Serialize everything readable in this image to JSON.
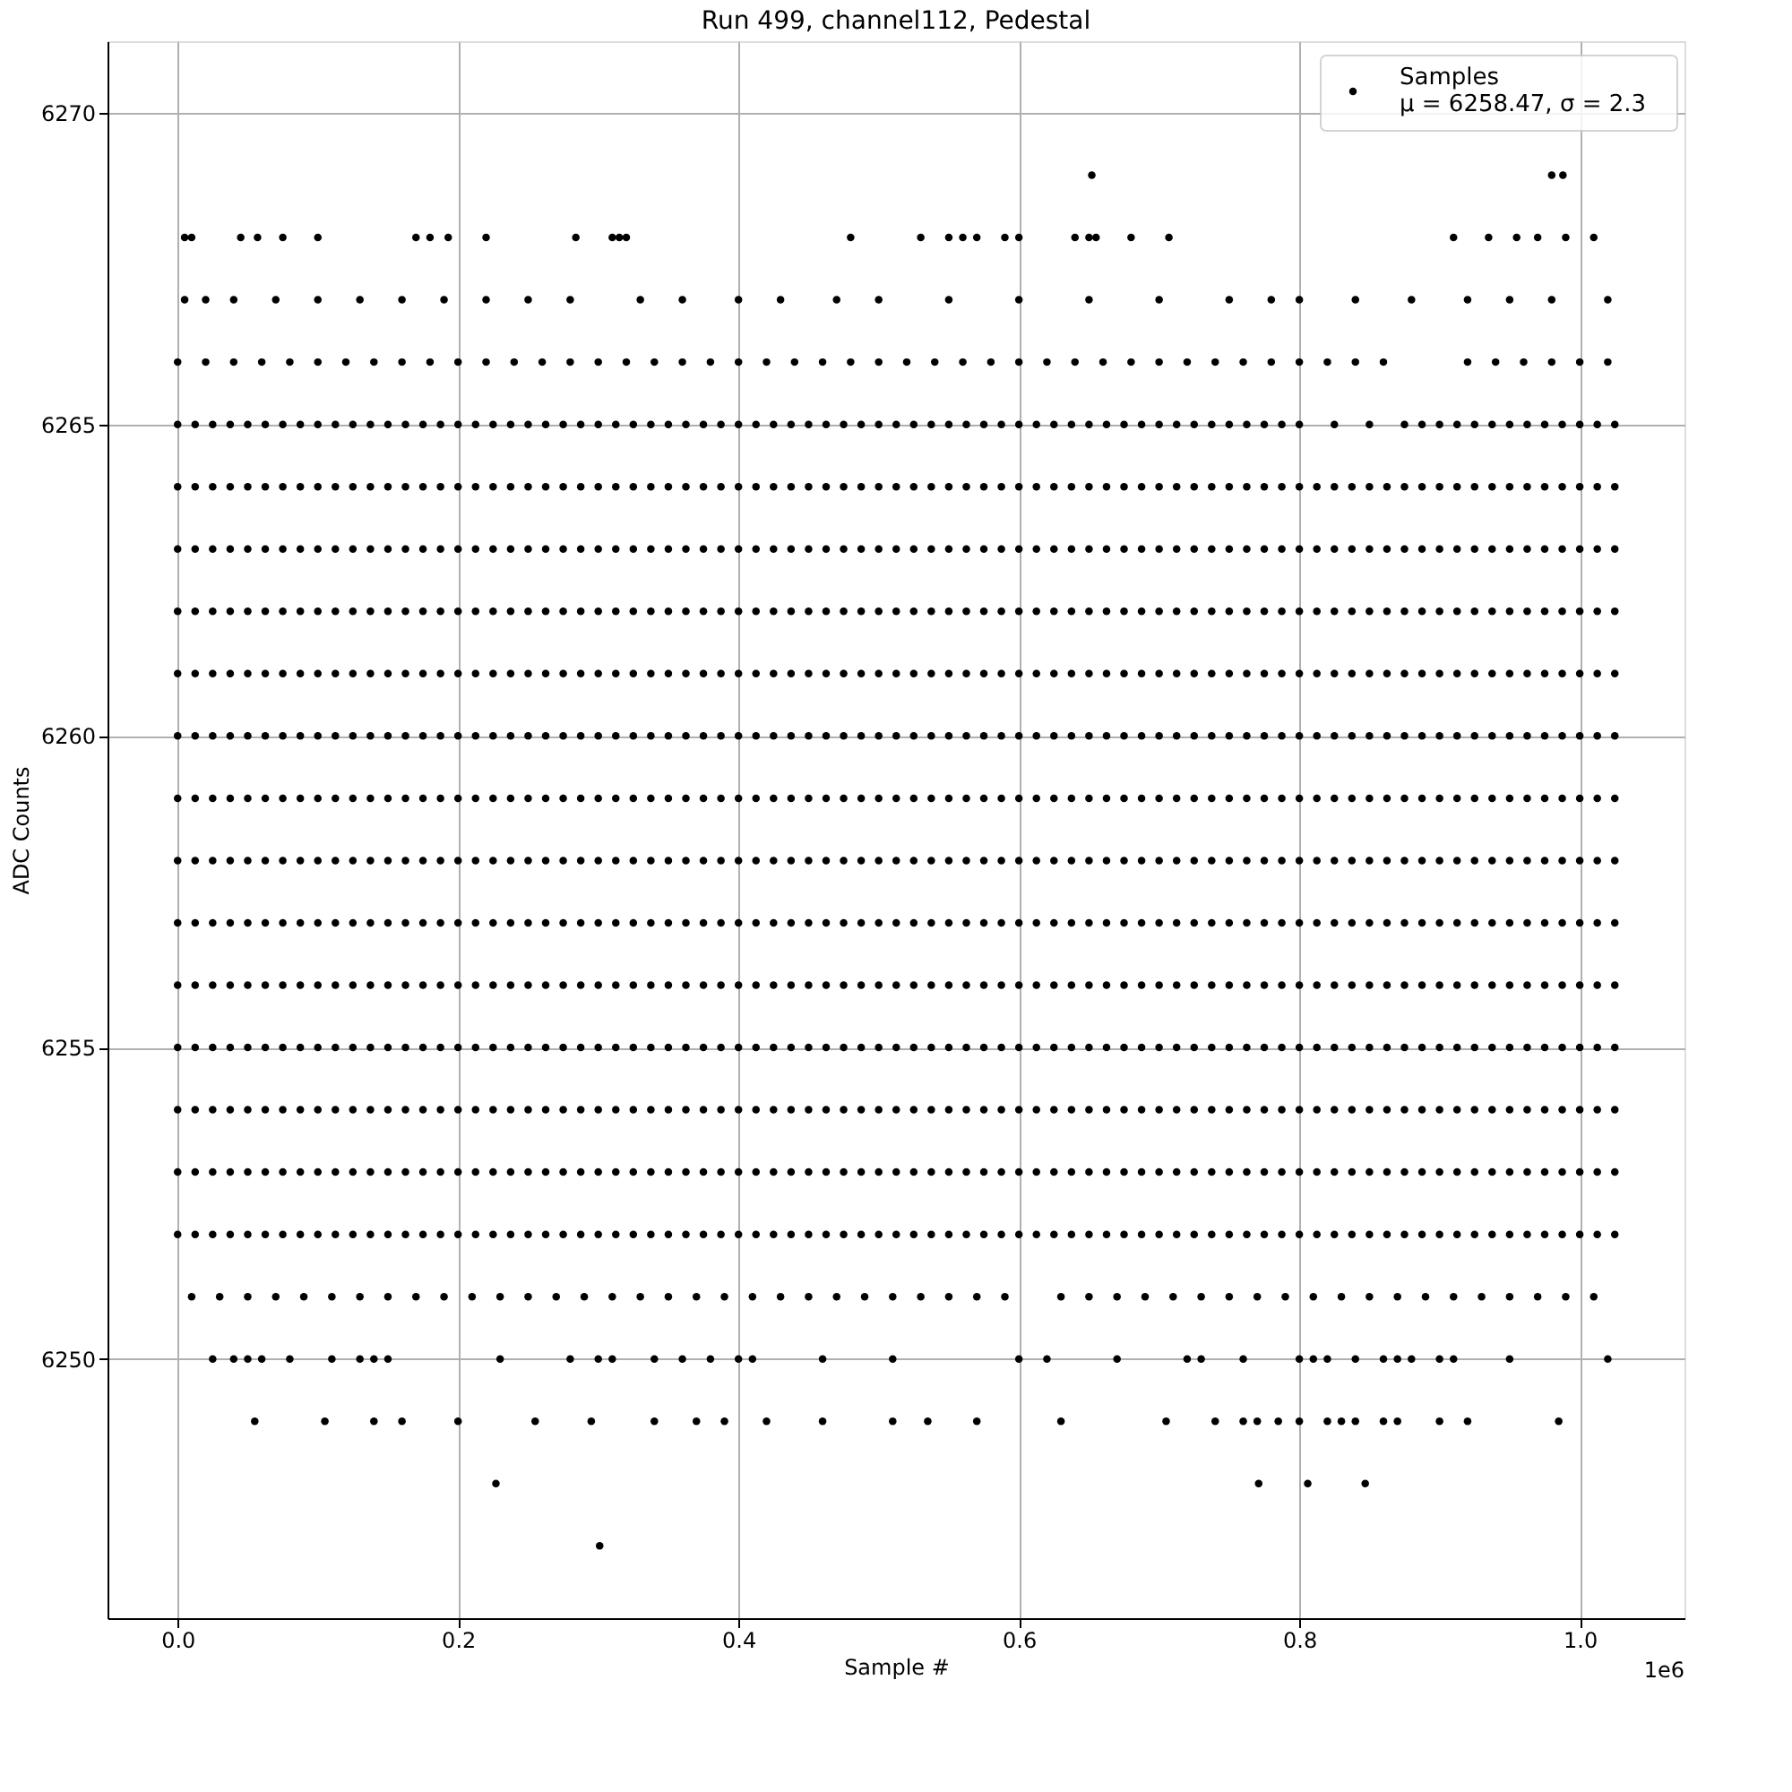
{
  "chart_data": {
    "type": "scatter",
    "title": "Run 499, channel112, Pedestal",
    "xlabel": "Sample #",
    "ylabel": "ADC Counts",
    "xlim": [
      -0.05,
      1.0747
    ],
    "ylim": [
      6245.84,
      6271.15
    ],
    "xticks": [
      {
        "value": 0,
        "label": "0.0"
      },
      0.2,
      0.4,
      0.6,
      0.8,
      {
        "value": 1,
        "label": "1.0"
      }
    ],
    "yticks": [
      6250,
      6255,
      6260,
      6265,
      6270
    ],
    "grid": true,
    "legend": "top right",
    "marker": "circle",
    "annotations": [
      "1e6"
    ],
    "x": [
      0,
      0.0125,
      0.025,
      0.0375,
      0.05,
      0.0625,
      0.075,
      0.0875,
      0.1,
      0.1125,
      0.125,
      0.1375,
      0.15,
      0.1625,
      0.175,
      0.1875,
      0.2,
      0.2125,
      0.225,
      0.2375,
      0.25,
      0.2625,
      0.275,
      0.2875,
      0.3,
      0.3125,
      0.325,
      0.3375,
      0.35,
      0.3625,
      0.375,
      0.3875,
      0.4,
      0.4125,
      0.425,
      0.4375,
      0.45,
      0.4625,
      0.475,
      0.4875,
      0.5,
      0.5125,
      0.525,
      0.5375,
      0.55,
      0.5625,
      0.575,
      0.5875,
      0.6,
      0.6125,
      0.625,
      0.6375,
      0.65,
      0.6625,
      0.675,
      0.6875,
      0.7,
      0.7125,
      0.725,
      0.7375,
      0.75,
      0.7625,
      0.775,
      0.7875,
      0.8,
      0.8125,
      0.825,
      0.8375,
      0.85,
      0.8625,
      0.875,
      0.8875,
      0.9,
      0.9125,
      0.925,
      0.9375,
      0.95,
      0.9625,
      0.975,
      0.9875,
      1,
      1.0125,
      1.025
    ],
    "series": [
      {
        "name": "Samples\nμ = 6258.47, σ = 2.3",
        "color": "#000000",
        "x": [
          0.652,
          0.98,
          0.988
        ],
        "values": [
          6269,
          6269,
          6269
        ]
      },
      {
        "color": "#000000",
        "x": [
          0.005,
          0.01,
          0.045,
          0.057,
          0.075,
          0.1,
          0.17,
          0.18,
          0.193,
          0.22,
          0.284,
          0.31,
          0.315,
          0.32,
          0.48,
          0.53,
          0.55,
          0.56,
          0.57,
          0.59,
          0.6,
          0.64,
          0.65,
          0.655,
          0.68,
          0.707,
          0.91,
          0.935,
          0.955,
          0.97,
          0.99,
          1.01
        ],
        "values": [
          6268,
          6268,
          6268,
          6268,
          6268,
          6268,
          6268,
          6268,
          6268,
          6268,
          6268,
          6268,
          6268,
          6268,
          6268,
          6268,
          6268,
          6268,
          6268,
          6268,
          6268,
          6268,
          6268,
          6268,
          6268,
          6268,
          6268,
          6268,
          6268,
          6268,
          6268,
          6268
        ]
      },
      {
        "color": "#000000",
        "x": [
          0.005,
          0.02,
          0.04,
          0.07,
          0.1,
          0.13,
          0.16,
          0.19,
          0.22,
          0.25,
          0.28,
          0.33,
          0.36,
          0.4,
          0.43,
          0.47,
          0.5,
          0.55,
          0.6,
          0.65,
          0.7,
          0.75,
          0.78,
          0.8,
          0.84,
          0.88,
          0.92,
          0.95,
          0.98,
          1.02
        ],
        "values": [
          6267,
          6267,
          6267,
          6267,
          6267,
          6267,
          6267,
          6267,
          6267,
          6267,
          6267,
          6267,
          6267,
          6267,
          6267,
          6267,
          6267,
          6267,
          6267,
          6267,
          6267,
          6267,
          6267,
          6267,
          6267,
          6267,
          6267,
          6267,
          6267,
          6267
        ]
      },
      {
        "color": "#000000",
        "x": [
          0,
          0.02,
          0.04,
          0.06,
          0.08,
          0.1,
          0.12,
          0.14,
          0.16,
          0.18,
          0.2,
          0.22,
          0.24,
          0.26,
          0.28,
          0.3,
          0.32,
          0.34,
          0.36,
          0.38,
          0.4,
          0.42,
          0.44,
          0.46,
          0.48,
          0.5,
          0.52,
          0.54,
          0.56,
          0.58,
          0.6,
          0.62,
          0.64,
          0.66,
          0.68,
          0.7,
          0.72,
          0.74,
          0.76,
          0.78,
          0.8,
          0.82,
          0.84,
          0.86,
          0.92,
          0.94,
          0.96,
          0.98,
          1,
          1.02
        ],
        "values": [
          6266,
          6266,
          6266,
          6266,
          6266,
          6266,
          6266,
          6266,
          6266,
          6266,
          6266,
          6266,
          6266,
          6266,
          6266,
          6266,
          6266,
          6266,
          6266,
          6266,
          6266,
          6266,
          6266,
          6266,
          6266,
          6266,
          6266,
          6266,
          6266,
          6266,
          6266,
          6266,
          6266,
          6266,
          6266,
          6266,
          6266,
          6266,
          6266,
          6266,
          6266,
          6266,
          6266,
          6266,
          6266,
          6266,
          6266,
          6266,
          6266,
          6266
        ]
      },
      {
        "color": "#000000",
        "values": [
          6265,
          6265,
          6265,
          6265,
          6265,
          6265,
          6265,
          6265,
          6265,
          6265,
          6265,
          6265,
          6265,
          6265,
          6265,
          6265,
          6265,
          6265,
          6265,
          6265,
          6265,
          6265,
          6265,
          6265,
          6265,
          6265,
          6265,
          6265,
          6265,
          6265,
          6265,
          6265,
          6265,
          6265,
          6265,
          6265,
          6265,
          6265,
          6265,
          6265,
          6265,
          6265,
          6265,
          6265,
          6265,
          6265,
          6265,
          6265,
          6265,
          6265,
          6265,
          6265,
          6265,
          6265,
          6265,
          6265,
          6265,
          6265,
          6265,
          6265,
          6265,
          6265,
          6265,
          6265,
          6265,
          null,
          6265,
          null,
          6265,
          null,
          6265,
          6265,
          6265,
          6265,
          6265,
          6265,
          6265,
          6265,
          6265,
          6265,
          6265,
          6265,
          6265
        ]
      },
      {
        "color": "#000000",
        "values": [
          6264,
          6264,
          6264,
          6264,
          6264,
          6264,
          6264,
          6264,
          6264,
          6264,
          6264,
          6264,
          6264,
          6264,
          6264,
          6264,
          6264,
          6264,
          6264,
          6264,
          6264,
          6264,
          6264,
          6264,
          6264,
          6264,
          6264,
          6264,
          6264,
          6264,
          6264,
          6264,
          6264,
          6264,
          6264,
          6264,
          6264,
          6264,
          6264,
          6264,
          6264,
          6264,
          6264,
          6264,
          6264,
          6264,
          6264,
          6264,
          6264,
          6264,
          6264,
          6264,
          6264,
          6264,
          6264,
          6264,
          6264,
          6264,
          6264,
          6264,
          6264,
          6264,
          6264,
          6264,
          6264,
          6264,
          6264,
          6264,
          6264,
          6264,
          6264,
          6264,
          6264,
          6264,
          6264,
          6264,
          6264,
          6264,
          6264,
          6264,
          6264,
          6264,
          6264
        ]
      },
      {
        "color": "#000000",
        "values": [
          6263,
          6263,
          6263,
          6263,
          6263,
          6263,
          6263,
          6263,
          6263,
          6263,
          6263,
          6263,
          6263,
          6263,
          6263,
          6263,
          6263,
          6263,
          6263,
          6263,
          6263,
          6263,
          6263,
          6263,
          6263,
          6263,
          6263,
          6263,
          6263,
          6263,
          6263,
          6263,
          6263,
          6263,
          6263,
          6263,
          6263,
          6263,
          6263,
          6263,
          6263,
          6263,
          6263,
          6263,
          6263,
          6263,
          6263,
          6263,
          6263,
          6263,
          6263,
          6263,
          6263,
          6263,
          6263,
          6263,
          6263,
          6263,
          6263,
          6263,
          6263,
          6263,
          6263,
          6263,
          6263,
          6263,
          6263,
          6263,
          6263,
          6263,
          6263,
          6263,
          6263,
          6263,
          6263,
          6263,
          6263,
          6263,
          6263,
          6263,
          6263,
          6263,
          6263
        ]
      },
      {
        "color": "#000000",
        "values": [
          6262,
          6262,
          6262,
          6262,
          6262,
          6262,
          6262,
          6262,
          6262,
          6262,
          6262,
          6262,
          6262,
          6262,
          6262,
          6262,
          6262,
          6262,
          6262,
          6262,
          6262,
          6262,
          6262,
          6262,
          6262,
          6262,
          6262,
          6262,
          6262,
          6262,
          6262,
          6262,
          6262,
          6262,
          6262,
          6262,
          6262,
          6262,
          6262,
          6262,
          6262,
          6262,
          6262,
          6262,
          6262,
          6262,
          6262,
          6262,
          6262,
          6262,
          6262,
          6262,
          6262,
          6262,
          6262,
          6262,
          6262,
          6262,
          6262,
          6262,
          6262,
          6262,
          6262,
          6262,
          6262,
          6262,
          6262,
          6262,
          6262,
          6262,
          6262,
          6262,
          6262,
          6262,
          6262,
          6262,
          6262,
          6262,
          6262,
          6262,
          6262,
          6262,
          6262
        ]
      },
      {
        "color": "#000000",
        "values": [
          6261,
          6261,
          6261,
          6261,
          6261,
          6261,
          6261,
          6261,
          6261,
          6261,
          6261,
          6261,
          6261,
          6261,
          6261,
          6261,
          6261,
          6261,
          6261,
          6261,
          6261,
          6261,
          6261,
          6261,
          6261,
          6261,
          6261,
          6261,
          6261,
          6261,
          6261,
          6261,
          6261,
          6261,
          6261,
          6261,
          6261,
          6261,
          6261,
          6261,
          6261,
          6261,
          6261,
          6261,
          6261,
          6261,
          6261,
          6261,
          6261,
          6261,
          6261,
          6261,
          6261,
          6261,
          6261,
          6261,
          6261,
          6261,
          6261,
          6261,
          6261,
          6261,
          6261,
          6261,
          6261,
          6261,
          6261,
          6261,
          6261,
          6261,
          6261,
          6261,
          6261,
          6261,
          6261,
          6261,
          6261,
          6261,
          6261,
          6261,
          6261,
          6261,
          6261
        ]
      },
      {
        "color": "#000000",
        "values": [
          6260,
          6260,
          6260,
          6260,
          6260,
          6260,
          6260,
          6260,
          6260,
          6260,
          6260,
          6260,
          6260,
          6260,
          6260,
          6260,
          6260,
          6260,
          6260,
          6260,
          6260,
          6260,
          6260,
          6260,
          6260,
          6260,
          6260,
          6260,
          6260,
          6260,
          6260,
          6260,
          6260,
          6260,
          6260,
          6260,
          6260,
          6260,
          6260,
          6260,
          6260,
          6260,
          6260,
          6260,
          6260,
          6260,
          6260,
          6260,
          6260,
          6260,
          6260,
          6260,
          6260,
          6260,
          6260,
          6260,
          6260,
          6260,
          6260,
          6260,
          6260,
          6260,
          6260,
          6260,
          6260,
          6260,
          6260,
          6260,
          6260,
          6260,
          6260,
          6260,
          6260,
          6260,
          6260,
          6260,
          6260,
          6260,
          6260,
          6260,
          6260,
          6260,
          6260
        ]
      },
      {
        "color": "#000000",
        "values": [
          6259,
          6259,
          6259,
          6259,
          6259,
          6259,
          6259,
          6259,
          6259,
          6259,
          6259,
          6259,
          6259,
          6259,
          6259,
          6259,
          6259,
          6259,
          6259,
          6259,
          6259,
          6259,
          6259,
          6259,
          6259,
          6259,
          6259,
          6259,
          6259,
          6259,
          6259,
          6259,
          6259,
          6259,
          6259,
          6259,
          6259,
          6259,
          6259,
          6259,
          6259,
          6259,
          6259,
          6259,
          6259,
          6259,
          6259,
          6259,
          6259,
          6259,
          6259,
          6259,
          6259,
          6259,
          6259,
          6259,
          6259,
          6259,
          6259,
          6259,
          6259,
          6259,
          6259,
          6259,
          6259,
          6259,
          6259,
          6259,
          6259,
          6259,
          6259,
          6259,
          6259,
          6259,
          6259,
          6259,
          6259,
          6259,
          6259,
          6259,
          6259,
          6259,
          6259
        ]
      },
      {
        "color": "#000000",
        "values": [
          6258,
          6258,
          6258,
          6258,
          6258,
          6258,
          6258,
          6258,
          6258,
          6258,
          6258,
          6258,
          6258,
          6258,
          6258,
          6258,
          6258,
          6258,
          6258,
          6258,
          6258,
          6258,
          6258,
          6258,
          6258,
          6258,
          6258,
          6258,
          6258,
          6258,
          6258,
          6258,
          6258,
          6258,
          6258,
          6258,
          6258,
          6258,
          6258,
          6258,
          6258,
          6258,
          6258,
          6258,
          6258,
          6258,
          6258,
          6258,
          6258,
          6258,
          6258,
          6258,
          6258,
          6258,
          6258,
          6258,
          6258,
          6258,
          6258,
          6258,
          6258,
          6258,
          6258,
          6258,
          6258,
          6258,
          6258,
          6258,
          6258,
          6258,
          6258,
          6258,
          6258,
          6258,
          6258,
          6258,
          6258,
          6258,
          6258,
          6258,
          6258,
          6258,
          6258
        ]
      },
      {
        "color": "#000000",
        "values": [
          6257,
          6257,
          6257,
          6257,
          6257,
          6257,
          6257,
          6257,
          6257,
          6257,
          6257,
          6257,
          6257,
          6257,
          6257,
          6257,
          6257,
          6257,
          6257,
          6257,
          6257,
          6257,
          6257,
          6257,
          6257,
          6257,
          6257,
          6257,
          6257,
          6257,
          6257,
          6257,
          6257,
          6257,
          6257,
          6257,
          6257,
          6257,
          6257,
          6257,
          6257,
          6257,
          6257,
          6257,
          6257,
          6257,
          6257,
          6257,
          6257,
          6257,
          6257,
          6257,
          6257,
          6257,
          6257,
          6257,
          6257,
          6257,
          6257,
          6257,
          6257,
          6257,
          6257,
          6257,
          6257,
          6257,
          6257,
          6257,
          6257,
          6257,
          6257,
          6257,
          6257,
          6257,
          6257,
          6257,
          6257,
          6257,
          6257,
          6257,
          6257,
          6257,
          6257
        ]
      },
      {
        "color": "#000000",
        "values": [
          6256,
          6256,
          6256,
          6256,
          6256,
          6256,
          6256,
          6256,
          6256,
          6256,
          6256,
          6256,
          6256,
          6256,
          6256,
          6256,
          6256,
          6256,
          6256,
          6256,
          6256,
          6256,
          6256,
          6256,
          6256,
          6256,
          6256,
          6256,
          6256,
          6256,
          6256,
          6256,
          6256,
          6256,
          6256,
          6256,
          6256,
          6256,
          6256,
          6256,
          6256,
          6256,
          6256,
          6256,
          6256,
          6256,
          6256,
          6256,
          6256,
          6256,
          6256,
          6256,
          6256,
          6256,
          6256,
          6256,
          6256,
          6256,
          6256,
          6256,
          6256,
          6256,
          6256,
          6256,
          6256,
          6256,
          6256,
          6256,
          6256,
          6256,
          6256,
          6256,
          6256,
          6256,
          6256,
          6256,
          6256,
          6256,
          6256,
          6256,
          6256,
          6256,
          6256
        ]
      },
      {
        "color": "#000000",
        "values": [
          6255,
          6255,
          6255,
          6255,
          6255,
          6255,
          6255,
          6255,
          6255,
          6255,
          6255,
          6255,
          6255,
          6255,
          6255,
          6255,
          6255,
          6255,
          6255,
          6255,
          6255,
          6255,
          6255,
          6255,
          6255,
          6255,
          6255,
          6255,
          6255,
          6255,
          6255,
          6255,
          6255,
          6255,
          6255,
          6255,
          6255,
          6255,
          6255,
          6255,
          6255,
          6255,
          6255,
          6255,
          6255,
          6255,
          6255,
          6255,
          6255,
          6255,
          6255,
          6255,
          6255,
          6255,
          6255,
          6255,
          6255,
          6255,
          6255,
          6255,
          6255,
          6255,
          6255,
          6255,
          6255,
          6255,
          6255,
          6255,
          6255,
          6255,
          6255,
          6255,
          6255,
          6255,
          6255,
          6255,
          6255,
          6255,
          6255,
          6255,
          6255,
          6255,
          6255
        ]
      },
      {
        "color": "#000000",
        "values": [
          6254,
          6254,
          6254,
          6254,
          6254,
          6254,
          6254,
          6254,
          6254,
          6254,
          6254,
          6254,
          6254,
          6254,
          6254,
          6254,
          6254,
          6254,
          6254,
          6254,
          6254,
          6254,
          6254,
          6254,
          6254,
          6254,
          6254,
          6254,
          6254,
          6254,
          6254,
          6254,
          6254,
          6254,
          6254,
          6254,
          6254,
          6254,
          6254,
          6254,
          6254,
          6254,
          6254,
          6254,
          6254,
          6254,
          6254,
          6254,
          6254,
          6254,
          6254,
          6254,
          6254,
          6254,
          6254,
          6254,
          6254,
          6254,
          6254,
          6254,
          6254,
          6254,
          6254,
          6254,
          6254,
          6254,
          6254,
          6254,
          6254,
          6254,
          6254,
          6254,
          6254,
          6254,
          6254,
          6254,
          6254,
          6254,
          6254,
          6254,
          6254,
          6254,
          6254
        ]
      },
      {
        "color": "#000000",
        "values": [
          6253,
          6253,
          6253,
          6253,
          6253,
          6253,
          6253,
          6253,
          6253,
          6253,
          6253,
          6253,
          6253,
          6253,
          6253,
          6253,
          6253,
          6253,
          6253,
          6253,
          6253,
          6253,
          6253,
          6253,
          6253,
          6253,
          6253,
          6253,
          6253,
          6253,
          6253,
          6253,
          6253,
          6253,
          6253,
          6253,
          6253,
          6253,
          6253,
          6253,
          6253,
          6253,
          6253,
          6253,
          6253,
          6253,
          6253,
          6253,
          6253,
          6253,
          6253,
          6253,
          6253,
          6253,
          6253,
          6253,
          6253,
          6253,
          6253,
          6253,
          6253,
          6253,
          6253,
          6253,
          6253,
          6253,
          6253,
          6253,
          6253,
          6253,
          6253,
          6253,
          6253,
          6253,
          6253,
          6253,
          6253,
          6253,
          6253,
          6253,
          6253,
          6253,
          6253
        ]
      },
      {
        "color": "#000000",
        "values": [
          6252,
          6252,
          6252,
          6252,
          6252,
          6252,
          6252,
          6252,
          6252,
          6252,
          6252,
          6252,
          6252,
          6252,
          6252,
          6252,
          6252,
          6252,
          6252,
          6252,
          6252,
          6252,
          6252,
          6252,
          6252,
          6252,
          6252,
          6252,
          6252,
          6252,
          6252,
          6252,
          6252,
          6252,
          6252,
          6252,
          6252,
          6252,
          6252,
          6252,
          6252,
          6252,
          6252,
          6252,
          6252,
          6252,
          6252,
          6252,
          6252,
          6252,
          6252,
          6252,
          6252,
          6252,
          6252,
          6252,
          6252,
          6252,
          6252,
          6252,
          6252,
          6252,
          6252,
          6252,
          6252,
          6252,
          6252,
          6252,
          6252,
          6252,
          6252,
          6252,
          6252,
          6252,
          6252,
          6252,
          6252,
          6252,
          6252,
          6252,
          6252,
          6252,
          6252
        ]
      },
      {
        "color": "#000000",
        "x": [
          0.01,
          0.03,
          0.05,
          0.07,
          0.09,
          0.11,
          0.13,
          0.15,
          0.17,
          0.19,
          0.21,
          0.23,
          0.25,
          0.27,
          0.29,
          0.31,
          0.33,
          0.35,
          0.37,
          0.39,
          0.41,
          0.43,
          0.45,
          0.47,
          0.49,
          0.51,
          0.53,
          0.55,
          0.57,
          0.59,
          0.63,
          0.65,
          0.67,
          0.69,
          0.71,
          0.73,
          0.75,
          0.77,
          0.79,
          0.81,
          0.83,
          0.85,
          0.87,
          0.89,
          0.91,
          0.93,
          0.95,
          0.97,
          0.99,
          1.01
        ],
        "values": [
          6251,
          6251,
          6251,
          6251,
          6251,
          6251,
          6251,
          6251,
          6251,
          6251,
          6251,
          6251,
          6251,
          6251,
          6251,
          6251,
          6251,
          6251,
          6251,
          6251,
          6251,
          6251,
          6251,
          6251,
          6251,
          6251,
          6251,
          6251,
          6251,
          6251,
          6251,
          6251,
          6251,
          6251,
          6251,
          6251,
          6251,
          6251,
          6251,
          6251,
          6251,
          6251,
          6251,
          6251,
          6251,
          6251,
          6251,
          6251,
          6251,
          6251
        ]
      },
      {
        "color": "#000000",
        "x": [
          0.025,
          0.04,
          0.05,
          0.06,
          0.08,
          0.11,
          0.13,
          0.14,
          0.15,
          0.23,
          0.28,
          0.3,
          0.31,
          0.34,
          0.36,
          0.38,
          0.4,
          0.41,
          0.46,
          0.51,
          0.6,
          0.62,
          0.67,
          0.72,
          0.73,
          0.76,
          0.8,
          0.81,
          0.82,
          0.84,
          0.86,
          0.87,
          0.88,
          0.9,
          0.91,
          0.95,
          1.02
        ],
        "values": [
          6250,
          6250,
          6250,
          6250,
          6250,
          6250,
          6250,
          6250,
          6250,
          6250,
          6250,
          6250,
          6250,
          6250,
          6250,
          6250,
          6250,
          6250,
          6250,
          6250,
          6250,
          6250,
          6250,
          6250,
          6250,
          6250,
          6250,
          6250,
          6250,
          6250,
          6250,
          6250,
          6250,
          6250,
          6250,
          6250,
          6250
        ]
      },
      {
        "color": "#000000",
        "x": [
          0.055,
          0.105,
          0.14,
          0.16,
          0.2,
          0.255,
          0.295,
          0.34,
          0.37,
          0.39,
          0.42,
          0.46,
          0.51,
          0.535,
          0.57,
          0.63,
          0.705,
          0.74,
          0.76,
          0.77,
          0.785,
          0.8,
          0.82,
          0.83,
          0.84,
          0.86,
          0.87,
          0.9,
          0.92,
          0.985
        ],
        "values": [
          6249,
          6249,
          6249,
          6249,
          6249,
          6249,
          6249,
          6249,
          6249,
          6249,
          6249,
          6249,
          6249,
          6249,
          6249,
          6249,
          6249,
          6249,
          6249,
          6249,
          6249,
          6249,
          6249,
          6249,
          6249,
          6249,
          6249,
          6249,
          6249,
          6249
        ]
      },
      {
        "color": "#000000",
        "x": [
          0.227,
          0.771,
          0.806,
          0.847
        ],
        "values": [
          6248,
          6248,
          6248,
          6248
        ]
      },
      {
        "color": "#000000",
        "x": [
          0.301
        ],
        "values": [
          6247
        ]
      }
    ]
  }
}
